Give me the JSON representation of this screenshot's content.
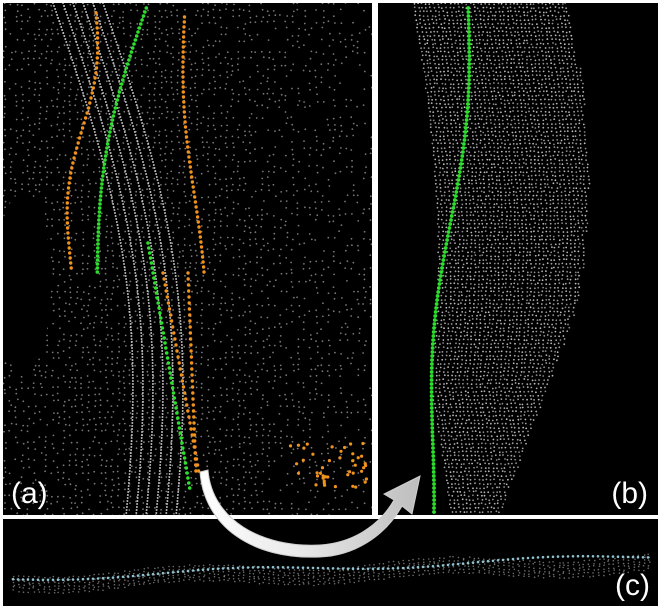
{
  "panels": {
    "a": {
      "label": "(a)"
    },
    "b": {
      "label": "(b)"
    },
    "c": {
      "label": "(c)"
    }
  },
  "colors": {
    "background": "#000000",
    "point_cloud": "#d9d9d9",
    "green_curve": "#2ee02e",
    "orange_curve": "#f0921e",
    "cyan_curve": "#9fd6e6",
    "arrow": "#ffffff",
    "separator": "#ffffff"
  },
  "icons": {
    "transition_arrow": "curved-arrow-icon"
  }
}
